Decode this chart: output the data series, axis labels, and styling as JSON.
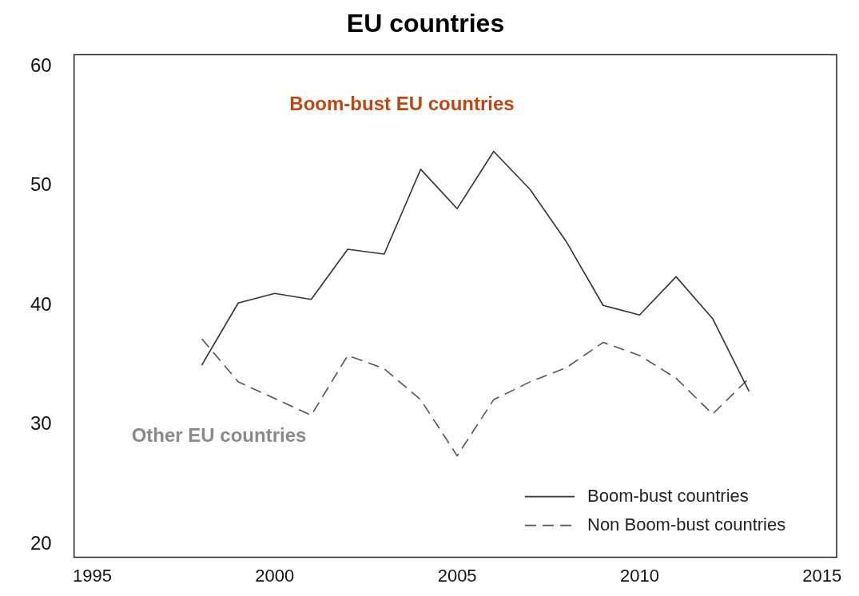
{
  "chart_data": {
    "type": "line",
    "title": "EU countries",
    "x": [
      1998,
      1999,
      2000,
      2001,
      2002,
      2003,
      2004,
      2005,
      2006,
      2007,
      2008,
      2009,
      2010,
      2011,
      2012,
      2013
    ],
    "series": [
      {
        "name": "Boom-bust countries",
        "color": "#333333",
        "line_style": "solid",
        "values": [
          35.0,
          40.2,
          41.0,
          40.5,
          44.7,
          44.3,
          51.4,
          48.1,
          52.9,
          49.7,
          45.3,
          40.0,
          39.2,
          42.4,
          38.9,
          32.8
        ]
      },
      {
        "name": "Non Boom-bust countries",
        "color": "#555555",
        "line_style": "dashed",
        "values": [
          37.2,
          33.6,
          32.2,
          30.8,
          35.8,
          34.7,
          32.1,
          27.4,
          32.1,
          33.6,
          34.8,
          36.9,
          35.8,
          33.9,
          30.9,
          33.9
        ]
      }
    ],
    "xlim": [
      1994.5,
      2015.4
    ],
    "xticks": [
      1995,
      2000,
      2005,
      2010,
      2015
    ],
    "ylim": [
      18.9,
      61
    ],
    "yticks": [
      20,
      30,
      40,
      50,
      60
    ],
    "annotations": [
      "Boom-bust EU countries",
      "Other EU countries"
    ],
    "legend": "bottom right",
    "grid": false,
    "marker": "none"
  }
}
